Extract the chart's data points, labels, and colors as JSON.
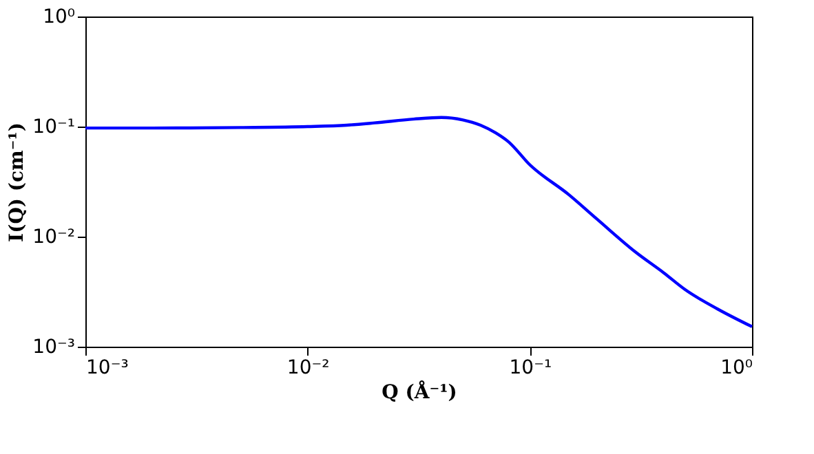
{
  "chart_data": {
    "type": "line",
    "xlabel": "Q (Å⁻¹)",
    "ylabel": "I(Q) (cm⁻¹)",
    "log": "xy",
    "grid": false,
    "marker": "none",
    "line_style": "solid",
    "x": [
      0.001,
      0.002,
      0.005,
      0.01,
      0.015,
      0.02,
      0.03,
      0.04,
      0.05,
      0.06,
      0.07,
      0.08,
      0.1,
      0.15,
      0.2,
      0.3,
      0.4,
      0.5,
      0.7,
      1.0
    ],
    "series": [
      {
        "color": "#0000ff",
        "values": [
          0.097,
          0.097,
          0.098,
          0.1,
          0.103,
          0.108,
          0.117,
          0.121,
          0.115,
          0.103,
          0.088,
          0.073,
          0.045,
          0.024,
          0.0145,
          0.0072,
          0.0047,
          0.0033,
          0.0022,
          0.00152
        ]
      }
    ],
    "xlim": [
      0.001,
      1
    ],
    "ylim": [
      0.001,
      1
    ],
    "xticks": [
      {
        "value": 0.001,
        "label": "10⁻³"
      },
      {
        "value": 0.01,
        "label": "10⁻²"
      },
      {
        "value": 0.1,
        "label": "10⁻¹"
      },
      {
        "value": 1,
        "label": "10⁰"
      }
    ],
    "yticks": [
      {
        "value": 0.001,
        "label": "10⁻³"
      },
      {
        "value": 0.01,
        "label": "10⁻²"
      },
      {
        "value": 0.1,
        "label": "10⁻¹"
      },
      {
        "value": 1,
        "label": "10⁰"
      }
    ]
  }
}
